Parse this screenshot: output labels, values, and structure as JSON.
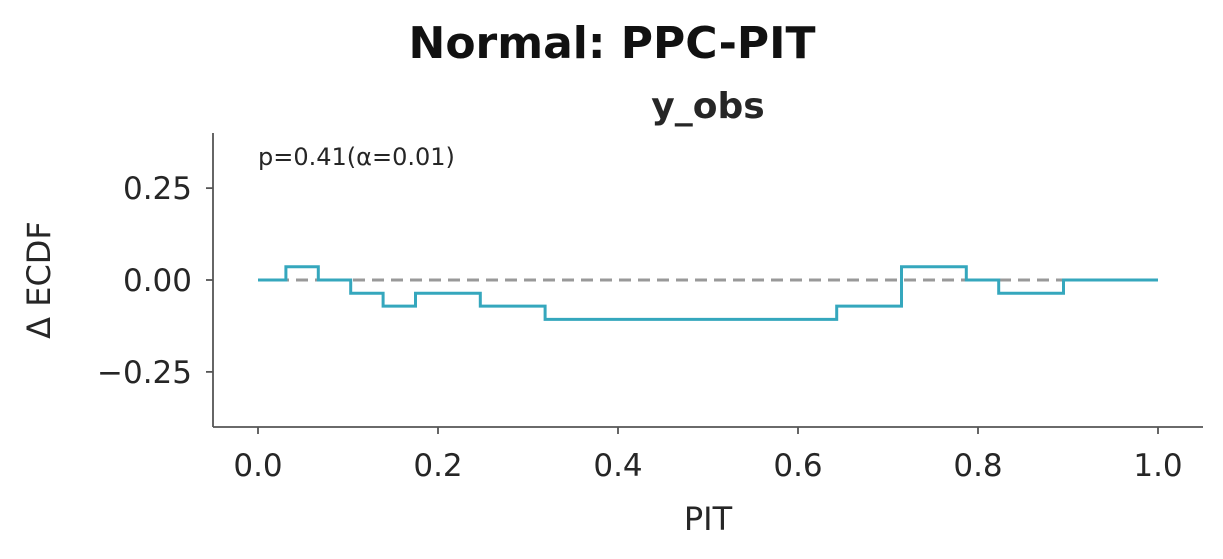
{
  "chart_data": {
    "type": "line",
    "title": "Normal: PPC-PIT",
    "subtitle": "y_obs",
    "xlabel": "PIT",
    "ylabel": "Δ ECDF",
    "xlim": [
      -0.05,
      1.05
    ],
    "ylim": [
      -0.4,
      0.4
    ],
    "xticks": [
      {
        "value": 0.0,
        "label": "0.0"
      },
      {
        "value": 0.2,
        "label": "0.2"
      },
      {
        "value": 0.4,
        "label": "0.4"
      },
      {
        "value": 0.6,
        "label": "0.6"
      },
      {
        "value": 0.8,
        "label": "0.8"
      },
      {
        "value": 1.0,
        "label": "1.0"
      }
    ],
    "yticks": [
      {
        "value": 0.25,
        "label": "0.25"
      },
      {
        "value": 0.0,
        "label": "0.00"
      },
      {
        "value": -0.25,
        "label": "−0.25"
      }
    ],
    "annotation": "p=0.41(α=0.01)",
    "grid": false,
    "reference": {
      "x": [
        0,
        1
      ],
      "y": [
        0,
        0
      ],
      "color": "#999999",
      "style": "dashed"
    },
    "series": [
      {
        "color": "#35a7bd",
        "step": "post",
        "x": [
          0.0,
          0.031,
          0.067,
          0.103,
          0.139,
          0.175,
          0.247,
          0.319,
          0.643,
          0.715,
          0.787,
          0.823,
          0.895,
          1.0
        ],
        "y": [
          0.0,
          0.036,
          0.0,
          -0.036,
          -0.071,
          -0.036,
          -0.071,
          -0.107,
          -0.071,
          0.036,
          0.0,
          -0.036,
          0.0,
          0.0
        ]
      }
    ]
  }
}
